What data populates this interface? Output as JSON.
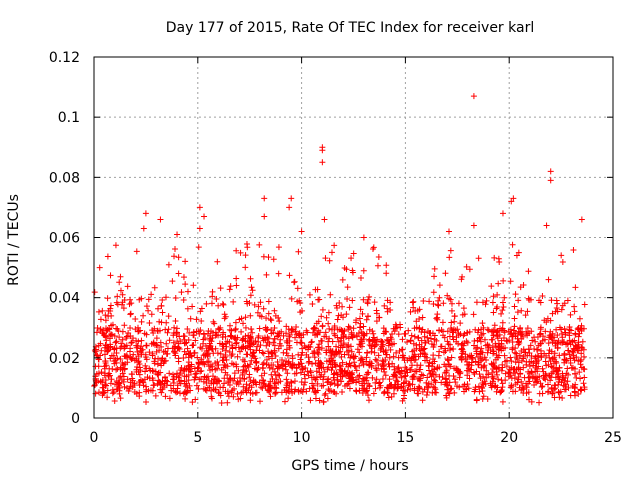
{
  "chart_data": {
    "type": "scatter",
    "title": "Day 177 of 2015, Rate Of TEC Index for receiver karl",
    "xlabel": "GPS time / hours",
    "ylabel": "ROTI / TECUs",
    "xlim": [
      0,
      25
    ],
    "ylim": [
      0,
      0.12
    ],
    "xticks": [
      0,
      5,
      10,
      15,
      20,
      25
    ],
    "xtick_labels": [
      "0",
      "5",
      "10",
      "15",
      "20",
      "25"
    ],
    "yticks": [
      0,
      0.02,
      0.04,
      0.06,
      0.08,
      0.1,
      0.12
    ],
    "ytick_labels": [
      "0",
      "0.02",
      "0.04",
      "0.06",
      "0.08",
      "0.1",
      "0.12"
    ],
    "grid": true,
    "marker": "+",
    "color": "#ff0000",
    "series": [
      {
        "name": "ROTI",
        "x_range": [
          0,
          23.7
        ],
        "typical_range": [
          0.005,
          0.045
        ],
        "outliers": [
          {
            "x": 18.3,
            "y": 0.107
          },
          {
            "x": 11.0,
            "y": 0.09
          },
          {
            "x": 11.0,
            "y": 0.089
          },
          {
            "x": 11.0,
            "y": 0.085
          },
          {
            "x": 11.1,
            "y": 0.066
          },
          {
            "x": 22.0,
            "y": 0.082
          },
          {
            "x": 22.0,
            "y": 0.079
          },
          {
            "x": 8.2,
            "y": 0.073
          },
          {
            "x": 8.2,
            "y": 0.067
          },
          {
            "x": 9.5,
            "y": 0.073
          },
          {
            "x": 9.4,
            "y": 0.07
          },
          {
            "x": 20.2,
            "y": 0.073
          },
          {
            "x": 20.1,
            "y": 0.072
          },
          {
            "x": 19.7,
            "y": 0.068
          },
          {
            "x": 5.1,
            "y": 0.07
          },
          {
            "x": 5.3,
            "y": 0.067
          },
          {
            "x": 5.1,
            "y": 0.063
          },
          {
            "x": 2.5,
            "y": 0.068
          },
          {
            "x": 3.2,
            "y": 0.066
          },
          {
            "x": 2.4,
            "y": 0.063
          },
          {
            "x": 23.5,
            "y": 0.066
          },
          {
            "x": 21.8,
            "y": 0.064
          },
          {
            "x": 18.3,
            "y": 0.064
          },
          {
            "x": 10.0,
            "y": 0.062
          },
          {
            "x": 13.0,
            "y": 0.06
          },
          {
            "x": 4.0,
            "y": 0.061
          },
          {
            "x": 17.1,
            "y": 0.062
          }
        ]
      }
    ]
  }
}
